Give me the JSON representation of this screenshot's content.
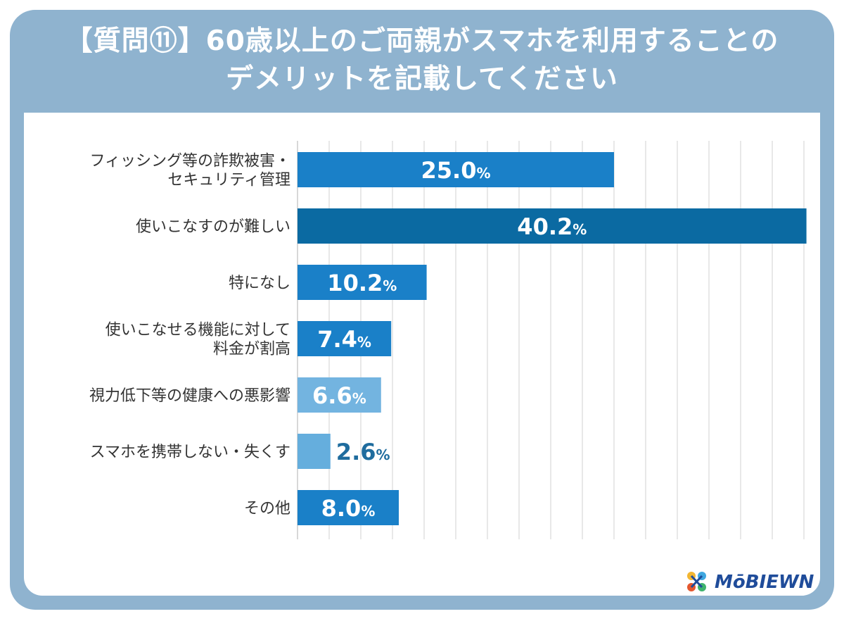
{
  "title": {
    "line1": "【質問⑪】60歳以上のご両親がスマホを利用することの",
    "line2": "デメリットを記載してください"
  },
  "colors": {
    "frame": "#8fb3cf",
    "bar_primary": "#1a80c8",
    "bar_highlight": "#0b6aa2",
    "bar_light": "#73b4e0",
    "bar_lighter": "#65aedd",
    "label_dark": "#1f6c9e",
    "grid": "#d9d9d9"
  },
  "chart_data": {
    "type": "bar",
    "orientation": "horizontal",
    "categories": [
      [
        "フィッシング等の詐欺被害・",
        "セキュリティ管理"
      ],
      [
        "使いこなすのが難しい"
      ],
      [
        "特になし"
      ],
      [
        "使いこなせる機能に対して",
        "料金が割高"
      ],
      [
        "視力低下等の健康への悪影響"
      ],
      [
        "スマホを携帯しない・失くす"
      ],
      [
        "その他"
      ]
    ],
    "values": [
      25.0,
      40.2,
      10.2,
      7.4,
      6.6,
      2.6,
      8.0
    ],
    "value_labels": [
      "25.0",
      "40.2",
      "10.2",
      "7.4",
      "6.6",
      "2.6",
      "8.0"
    ],
    "unit": "%",
    "bar_colors": [
      "#1a80c8",
      "#0b6aa2",
      "#1a80c8",
      "#1a80c8",
      "#73b4e0",
      "#65aedd",
      "#1a80c8"
    ],
    "xlim": [
      0,
      40
    ],
    "grid": true,
    "grid_step": 2.5
  },
  "logo": {
    "text": "MōBIEWN"
  }
}
